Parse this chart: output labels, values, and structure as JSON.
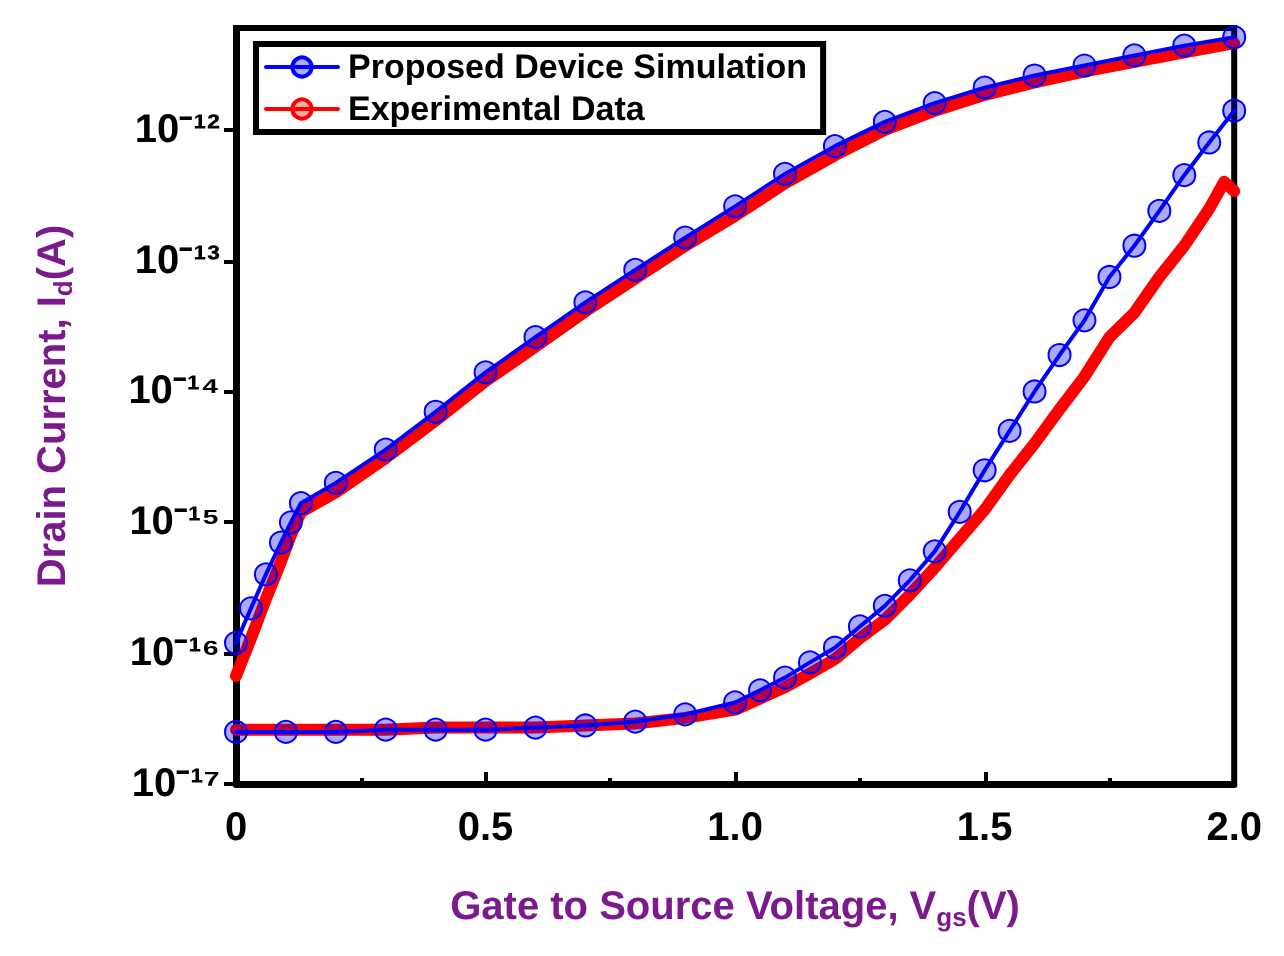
{
  "chart_data": {
    "type": "line",
    "xlabel": "Gate to Source Voltage, V$_{gs}$(V)",
    "ylabel": "Drain Current, I$_{d}$(A)",
    "log": "y",
    "xlim": [
      0,
      2
    ],
    "xticks": [
      0,
      {
        "value": 0.5,
        "label": "0.5"
      },
      {
        "value": 1,
        "label": "1.0"
      },
      {
        "value": 1.5,
        "label": "1.5"
      },
      {
        "value": 2,
        "label": "2.0"
      }
    ],
    "ylim": [
      1e-17,
      6e-12
    ],
    "yticks": [
      {
        "value": 1e-17,
        "label": "10⁻¹⁷"
      },
      {
        "value": 1e-16,
        "label": "10⁻¹⁶"
      },
      {
        "value": 1e-15,
        "label": "10⁻¹⁵"
      },
      {
        "value": 1e-14,
        "label": "10⁻¹⁴"
      },
      {
        "value": 1e-13,
        "label": "10⁻¹³"
      },
      {
        "value": 1e-12,
        "label": "10⁻¹²"
      }
    ],
    "grid": false,
    "legend": "top left",
    "series": [
      {
        "name": "Proposed Device Simulation",
        "color": "#0000ff",
        "marker": "circle",
        "x": [
          0,
          0.03,
          0.06,
          0.09,
          0.11,
          0.13,
          0.2,
          0.3,
          0.4,
          0.5,
          0.6,
          0.7,
          0.8,
          0.9,
          1.0,
          1.1,
          1.2,
          1.3,
          1.4,
          1.5,
          1.6,
          1.7,
          1.8,
          1.9,
          2.0,
          null,
          0,
          0.1,
          0.2,
          0.3,
          0.4,
          0.5,
          0.6,
          0.7,
          0.8,
          0.9,
          1.0,
          1.05,
          1.1,
          1.15,
          1.2,
          1.25,
          1.3,
          1.35,
          1.4,
          1.45,
          1.5,
          1.55,
          1.6,
          1.65,
          1.7,
          1.75,
          1.8,
          1.85,
          1.9,
          1.95,
          2.0
        ],
        "values": [
          1.2e-16,
          2.2e-16,
          4e-16,
          7e-16,
          1e-15,
          1.4e-15,
          2e-15,
          3.6e-15,
          7e-15,
          1.4e-14,
          2.6e-14,
          4.8e-14,
          8.5e-14,
          1.5e-13,
          2.6e-13,
          4.6e-13,
          7.5e-13,
          1.15e-12,
          1.6e-12,
          2.1e-12,
          2.6e-12,
          3.1e-12,
          3.7e-12,
          4.4e-12,
          5.1e-12,
          null,
          2.5e-17,
          2.5e-17,
          2.5e-17,
          2.6e-17,
          2.6e-17,
          2.6e-17,
          2.7e-17,
          2.8e-17,
          3e-17,
          3.4e-17,
          4.2e-17,
          5.2e-17,
          6.5e-17,
          8.5e-17,
          1.1e-16,
          1.6e-16,
          2.3e-16,
          3.6e-16,
          6e-16,
          1.2e-15,
          2.5e-15,
          5e-15,
          1e-14,
          1.9e-14,
          3.5e-14,
          7.5e-14,
          1.3e-13,
          2.4e-13,
          4.5e-13,
          8e-13,
          1.4e-12
        ]
      },
      {
        "name": "Experimental Data",
        "color": "#ff0000",
        "marker": "none",
        "x": [
          0,
          0.03,
          0.06,
          0.09,
          0.11,
          0.13,
          0.2,
          0.3,
          0.4,
          0.5,
          0.6,
          0.7,
          0.8,
          0.9,
          1.0,
          1.1,
          1.2,
          1.3,
          1.4,
          1.5,
          1.6,
          1.7,
          1.8,
          1.9,
          2.0,
          null,
          0,
          0.1,
          0.2,
          0.3,
          0.4,
          0.5,
          0.6,
          0.7,
          0.8,
          0.9,
          1.0,
          1.05,
          1.1,
          1.15,
          1.2,
          1.25,
          1.3,
          1.35,
          1.4,
          1.45,
          1.5,
          1.55,
          1.6,
          1.65,
          1.7,
          1.75,
          1.8,
          1.85,
          1.9,
          1.95,
          1.98,
          2.0
        ],
        "values": [
          6.7e-17,
          1.3e-16,
          2.6e-16,
          5e-16,
          8e-16,
          1.2e-15,
          1.7e-15,
          3.1e-15,
          6e-15,
          1.2e-14,
          2.2e-14,
          4.1e-14,
          7.3e-14,
          1.3e-13,
          2.2e-13,
          3.9e-13,
          6.4e-13,
          1e-12,
          1.4e-12,
          1.85e-12,
          2.3e-12,
          2.8e-12,
          3.3e-12,
          3.9e-12,
          4.6e-12,
          null,
          2.6e-17,
          2.6e-17,
          2.6e-17,
          2.6e-17,
          2.7e-17,
          2.7e-17,
          2.7e-17,
          2.8e-17,
          2.9e-17,
          3.2e-17,
          3.7e-17,
          4.5e-17,
          5.5e-17,
          7e-17,
          9e-17,
          1.3e-16,
          1.8e-16,
          2.8e-16,
          4.5e-16,
          7.5e-16,
          1.25e-15,
          2.3e-15,
          4e-15,
          7.3e-15,
          1.3e-14,
          2.6e-14,
          4e-14,
          7.5e-14,
          1.3e-13,
          2.5e-13,
          4e-13,
          3.4e-13
        ]
      }
    ]
  }
}
